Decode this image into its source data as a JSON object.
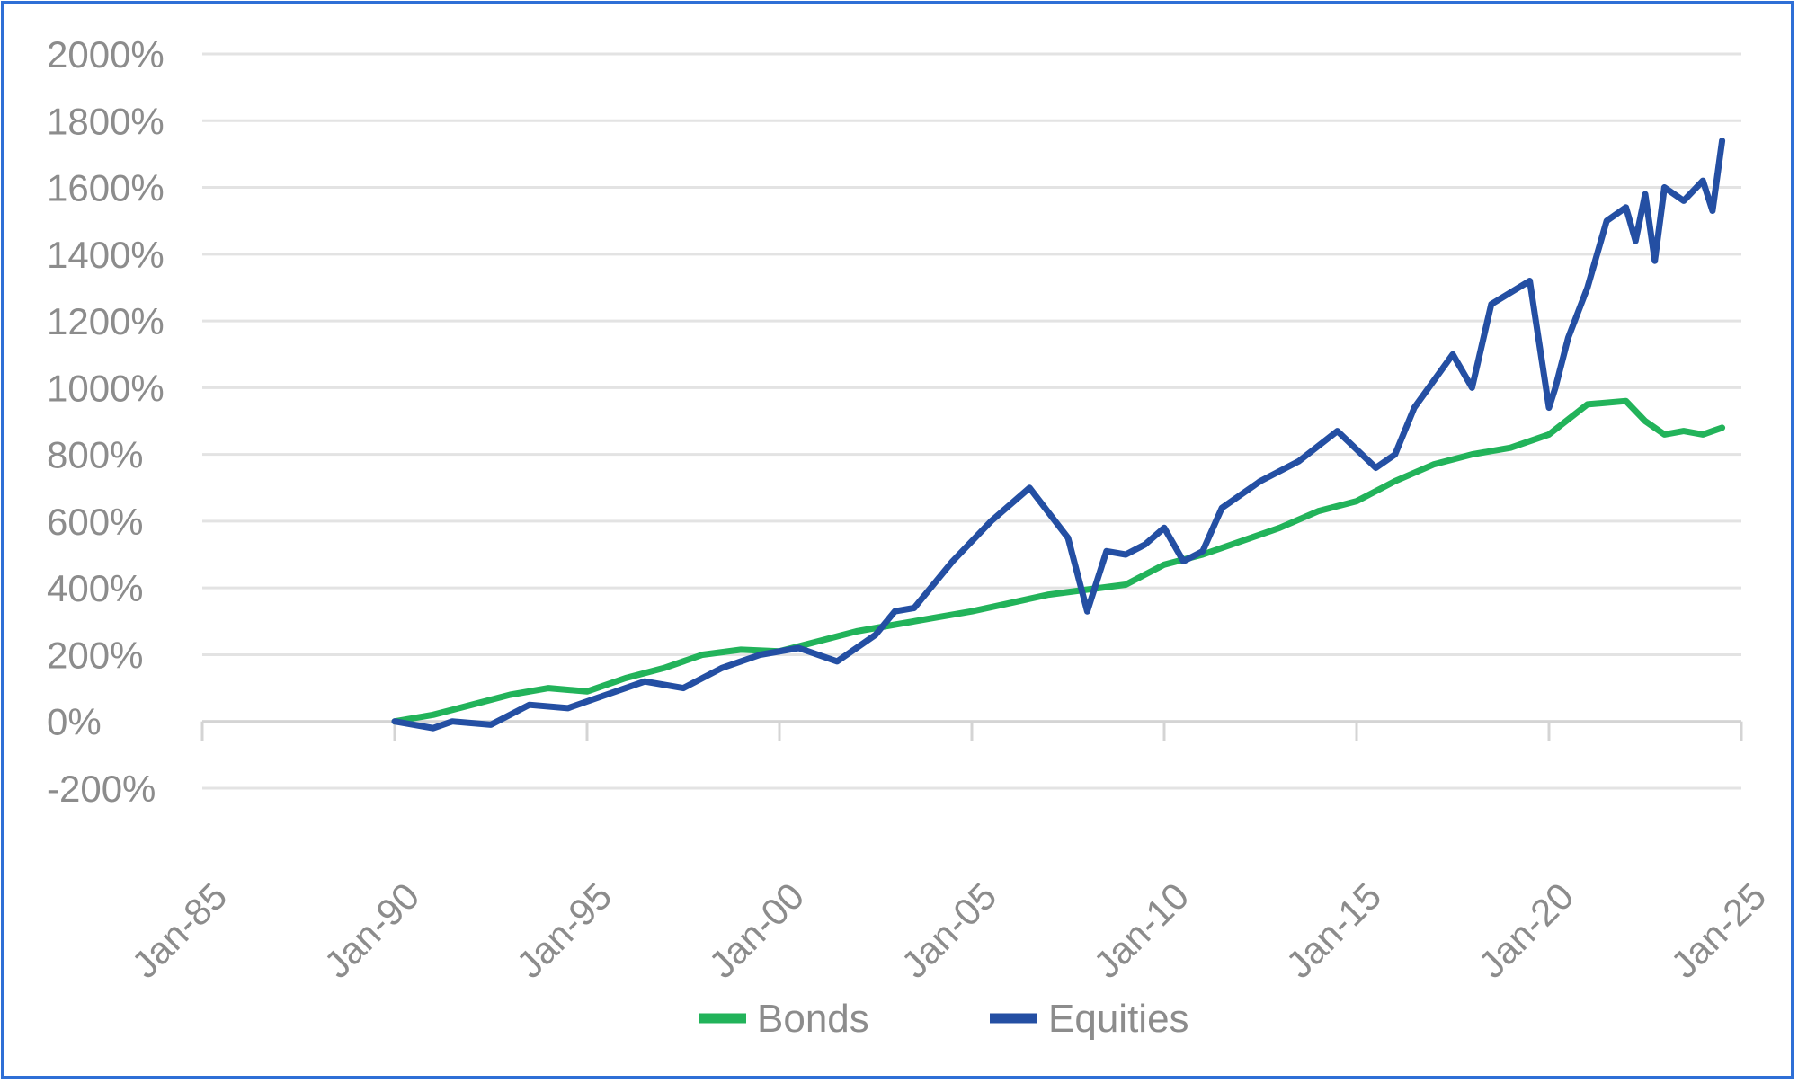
{
  "chart_data": {
    "type": "line",
    "title": "",
    "xlabel": "",
    "ylabel": "",
    "ylim": [
      -200,
      2000
    ],
    "xlim": [
      "1985-01",
      "2025-01"
    ],
    "grid": true,
    "legend_position": "bottom",
    "y_ticks": [
      "2000%",
      "1800%",
      "1600%",
      "1400%",
      "1200%",
      "1000%",
      "800%",
      "600%",
      "400%",
      "200%",
      "0%",
      "-200%"
    ],
    "y_tick_values": [
      2000,
      1800,
      1600,
      1400,
      1200,
      1000,
      800,
      600,
      400,
      200,
      0,
      -200
    ],
    "x_ticks": [
      "Jan-85",
      "Jan-90",
      "Jan-95",
      "Jan-00",
      "Jan-05",
      "Jan-10",
      "Jan-15",
      "Jan-20",
      "Jan-25"
    ],
    "x_tick_values": [
      "1985-01",
      "1990-01",
      "1995-01",
      "2000-01",
      "2005-01",
      "2010-01",
      "2015-01",
      "2020-01",
      "2025-01"
    ],
    "series": [
      {
        "name": "Bonds",
        "color": "#22b35a",
        "x": [
          "1990-01",
          "1991-01",
          "1992-01",
          "1993-01",
          "1994-01",
          "1995-01",
          "1996-01",
          "1997-01",
          "1998-01",
          "1999-01",
          "2000-01",
          "2001-01",
          "2002-01",
          "2003-01",
          "2004-01",
          "2005-01",
          "2006-01",
          "2007-01",
          "2008-01",
          "2009-01",
          "2010-01",
          "2011-01",
          "2012-01",
          "2013-01",
          "2014-01",
          "2015-01",
          "2016-01",
          "2017-01",
          "2018-01",
          "2019-01",
          "2020-01",
          "2021-01",
          "2022-01",
          "2022-07",
          "2023-01",
          "2023-07",
          "2024-01",
          "2024-07"
        ],
        "values": [
          0,
          20,
          50,
          80,
          100,
          90,
          130,
          160,
          200,
          215,
          210,
          240,
          270,
          290,
          310,
          330,
          355,
          380,
          395,
          410,
          470,
          500,
          540,
          580,
          630,
          660,
          720,
          770,
          800,
          820,
          860,
          950,
          960,
          900,
          860,
          870,
          860,
          880
        ]
      },
      {
        "name": "Equities",
        "color": "#244fa3",
        "x": [
          "1990-01",
          "1991-01",
          "1991-07",
          "1992-07",
          "1993-07",
          "1994-07",
          "1995-07",
          "1996-07",
          "1997-07",
          "1998-07",
          "1999-07",
          "2000-07",
          "2001-07",
          "2002-07",
          "2003-01",
          "2003-07",
          "2004-07",
          "2005-07",
          "2006-07",
          "2007-07",
          "2008-01",
          "2008-07",
          "2009-01",
          "2009-07",
          "2010-01",
          "2010-07",
          "2011-01",
          "2011-07",
          "2012-07",
          "2013-07",
          "2014-07",
          "2015-07",
          "2016-01",
          "2016-07",
          "2017-01",
          "2017-07",
          "2018-01",
          "2018-07",
          "2019-07",
          "2020-01",
          "2020-03",
          "2020-07",
          "2021-01",
          "2021-07",
          "2022-01",
          "2022-04",
          "2022-07",
          "2022-10",
          "2023-01",
          "2023-07",
          "2024-01",
          "2024-04",
          "2024-07"
        ],
        "values": [
          0,
          -20,
          0,
          -10,
          50,
          40,
          80,
          120,
          100,
          160,
          200,
          220,
          180,
          260,
          330,
          340,
          480,
          600,
          700,
          550,
          330,
          510,
          500,
          530,
          580,
          480,
          510,
          640,
          720,
          780,
          870,
          760,
          800,
          940,
          1020,
          1100,
          1000,
          1250,
          1320,
          940,
          1000,
          1150,
          1300,
          1500,
          1540,
          1440,
          1580,
          1380,
          1600,
          1560,
          1620,
          1530,
          1740
        ]
      }
    ]
  },
  "legend": {
    "items": [
      "Bonds",
      "Equities"
    ]
  }
}
